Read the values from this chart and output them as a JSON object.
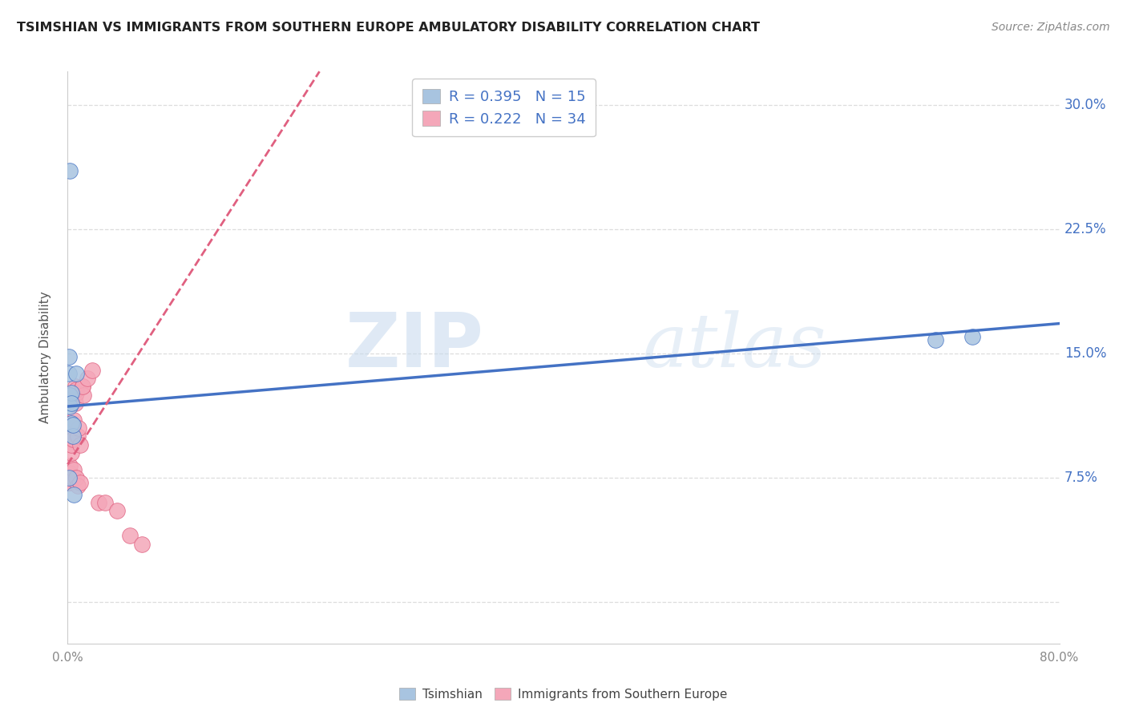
{
  "title": "TSIMSHIAN VS IMMIGRANTS FROM SOUTHERN EUROPE AMBULATORY DISABILITY CORRELATION CHART",
  "source": "Source: ZipAtlas.com",
  "ylabel": "Ambulatory Disability",
  "yticks": [
    0.0,
    0.075,
    0.15,
    0.225,
    0.3
  ],
  "ytick_labels": [
    "",
    "7.5%",
    "15.0%",
    "22.5%",
    "30.0%"
  ],
  "xticks": [
    0.0,
    0.2,
    0.4,
    0.6,
    0.8
  ],
  "xtick_labels": [
    "0.0%",
    "",
    "",
    "",
    "80.0%"
  ],
  "xmin": 0.0,
  "xmax": 0.8,
  "ymin": -0.025,
  "ymax": 0.32,
  "tsimshian_x": [
    0.002,
    0.001,
    0.001,
    0.002,
    0.002,
    0.003,
    0.003,
    0.003,
    0.004,
    0.004,
    0.001,
    0.005,
    0.007,
    0.7,
    0.73
  ],
  "tsimshian_y": [
    0.26,
    0.148,
    0.138,
    0.125,
    0.118,
    0.126,
    0.12,
    0.108,
    0.1,
    0.107,
    0.075,
    0.065,
    0.138,
    0.158,
    0.16
  ],
  "immigrants_x": [
    0.001,
    0.001,
    0.001,
    0.002,
    0.002,
    0.003,
    0.003,
    0.003,
    0.004,
    0.004,
    0.005,
    0.006,
    0.006,
    0.006,
    0.007,
    0.007,
    0.008,
    0.009,
    0.01,
    0.012,
    0.013,
    0.004,
    0.005,
    0.007,
    0.008,
    0.01,
    0.012,
    0.016,
    0.02,
    0.025,
    0.03,
    0.04,
    0.05,
    0.06
  ],
  "immigrants_y": [
    0.072,
    0.075,
    0.072,
    0.078,
    0.082,
    0.09,
    0.095,
    0.1,
    0.105,
    0.098,
    0.11,
    0.125,
    0.12,
    0.13,
    0.126,
    0.128,
    0.1,
    0.105,
    0.095,
    0.13,
    0.125,
    0.075,
    0.08,
    0.075,
    0.07,
    0.072,
    0.13,
    0.135,
    0.14,
    0.06,
    0.06,
    0.055,
    0.04,
    0.035
  ],
  "blue_color": "#a8c4e0",
  "pink_color": "#f4a7b9",
  "blue_line_color": "#4472c4",
  "pink_line_color": "#e06080",
  "legend_text_color": "#4472c4",
  "right_axis_color": "#4472c4",
  "tsimshian_trendline_x0": 0.0,
  "tsimshian_trendline_x1": 0.8,
  "tsimshian_trendline_y0": 0.118,
  "tsimshian_trendline_y1": 0.168,
  "immigrants_trendline_x0": 0.0,
  "immigrants_trendline_x1": 0.06,
  "immigrants_trendline_y0": 0.083,
  "immigrants_trendline_y1": 0.153,
  "R_tsimshian": 0.395,
  "N_tsimshian": 15,
  "R_immigrants": 0.222,
  "N_immigrants": 34,
  "watermark_zip": "ZIP",
  "watermark_atlas": "atlas",
  "background_color": "#ffffff",
  "grid_color": "#dddddd"
}
